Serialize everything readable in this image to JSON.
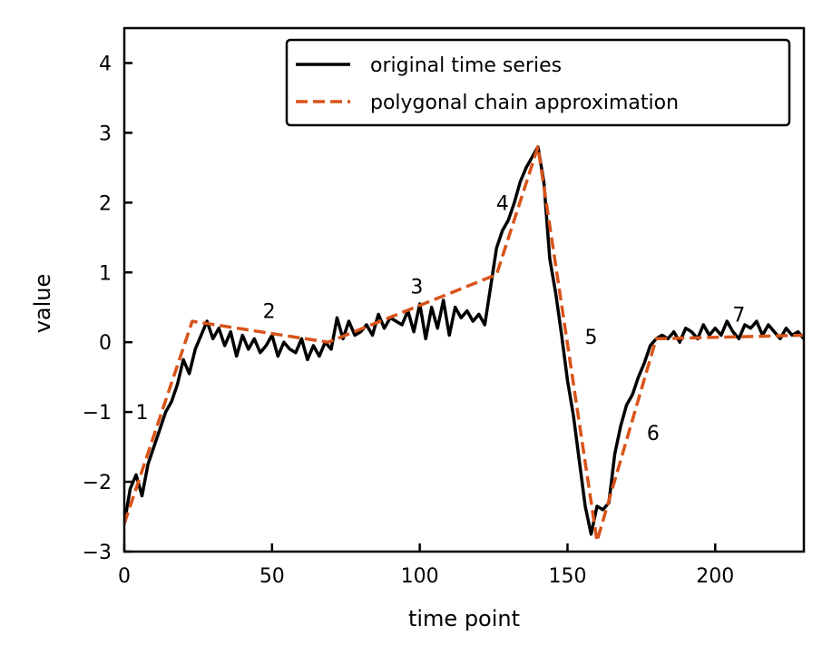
{
  "chart_data": {
    "type": "line",
    "xlabel": "time point",
    "ylabel": "value",
    "xlim": [
      0,
      230
    ],
    "ylim": [
      -3,
      4.5
    ],
    "xticks": [
      0,
      50,
      100,
      150,
      200
    ],
    "yticks": [
      -3,
      -2,
      -1,
      0,
      1,
      2,
      3,
      4
    ],
    "ytick_labels": [
      "−3",
      "−2",
      "−1",
      "0",
      "1",
      "2",
      "3",
      "4"
    ],
    "grid": false,
    "legend_position": "top-right",
    "series": [
      {
        "name": "original time series",
        "color": "#000000",
        "style": "solid",
        "x": [
          0,
          2,
          4,
          6,
          8,
          10,
          12,
          14,
          16,
          18,
          20,
          22,
          24,
          26,
          28,
          30,
          32,
          34,
          36,
          38,
          40,
          42,
          44,
          46,
          48,
          50,
          52,
          54,
          56,
          58,
          60,
          62,
          64,
          66,
          68,
          70,
          72,
          74,
          76,
          78,
          80,
          82,
          84,
          86,
          88,
          90,
          92,
          94,
          96,
          98,
          100,
          102,
          104,
          106,
          108,
          110,
          112,
          114,
          116,
          118,
          120,
          122,
          124,
          126,
          128,
          130,
          132,
          134,
          136,
          138,
          140,
          142,
          144,
          146,
          148,
          150,
          152,
          154,
          156,
          158,
          160,
          162,
          164,
          166,
          168,
          170,
          172,
          174,
          176,
          178,
          180,
          182,
          184,
          186,
          188,
          190,
          192,
          194,
          196,
          198,
          200,
          202,
          204,
          206,
          208,
          210,
          212,
          214,
          216,
          218,
          220,
          222,
          224,
          226,
          228,
          230
        ],
        "y": [
          -2.6,
          -2.1,
          -1.9,
          -2.2,
          -1.75,
          -1.5,
          -1.25,
          -1.0,
          -0.85,
          -0.6,
          -0.25,
          -0.45,
          -0.1,
          0.1,
          0.3,
          0.05,
          0.2,
          -0.05,
          0.15,
          -0.2,
          0.1,
          -0.1,
          0.05,
          -0.15,
          -0.05,
          0.1,
          -0.2,
          0.0,
          -0.1,
          -0.15,
          0.05,
          -0.25,
          -0.05,
          -0.2,
          0.0,
          -0.1,
          0.35,
          0.05,
          0.3,
          0.1,
          0.15,
          0.25,
          0.1,
          0.4,
          0.2,
          0.35,
          0.3,
          0.25,
          0.45,
          0.15,
          0.55,
          0.05,
          0.5,
          0.2,
          0.6,
          0.1,
          0.5,
          0.35,
          0.45,
          0.3,
          0.4,
          0.25,
          0.8,
          1.35,
          1.6,
          1.75,
          2.0,
          2.3,
          2.5,
          2.65,
          2.8,
          2.3,
          1.2,
          0.7,
          0.1,
          -0.55,
          -1.05,
          -1.7,
          -2.35,
          -2.75,
          -2.35,
          -2.4,
          -2.3,
          -1.6,
          -1.2,
          -0.9,
          -0.75,
          -0.5,
          -0.3,
          -0.05,
          0.05,
          0.1,
          0.05,
          0.15,
          0.0,
          0.2,
          0.15,
          0.05,
          0.25,
          0.1,
          0.2,
          0.1,
          0.3,
          0.15,
          0.05,
          0.25,
          0.2,
          0.3,
          0.1,
          0.25,
          0.15,
          0.05,
          0.2,
          0.1,
          0.15,
          0.05
        ]
      },
      {
        "name": "polygonal chain approximation",
        "color": "#d95319",
        "style": "dashed",
        "x": [
          0,
          23,
          69,
          126,
          140,
          160,
          180,
          230
        ],
        "y": [
          -2.6,
          0.3,
          0.0,
          0.97,
          2.8,
          -2.85,
          0.05,
          0.1
        ]
      }
    ],
    "annotations": [
      {
        "text": "1",
        "x": 6,
        "y": -1.0
      },
      {
        "text": "2",
        "x": 49,
        "y": 0.45
      },
      {
        "text": "3",
        "x": 99,
        "y": 0.8
      },
      {
        "text": "4",
        "x": 128,
        "y": 2.0
      },
      {
        "text": "5",
        "x": 158,
        "y": 0.08
      },
      {
        "text": "6",
        "x": 179,
        "y": -1.3
      },
      {
        "text": "7",
        "x": 208,
        "y": 0.4
      }
    ]
  }
}
